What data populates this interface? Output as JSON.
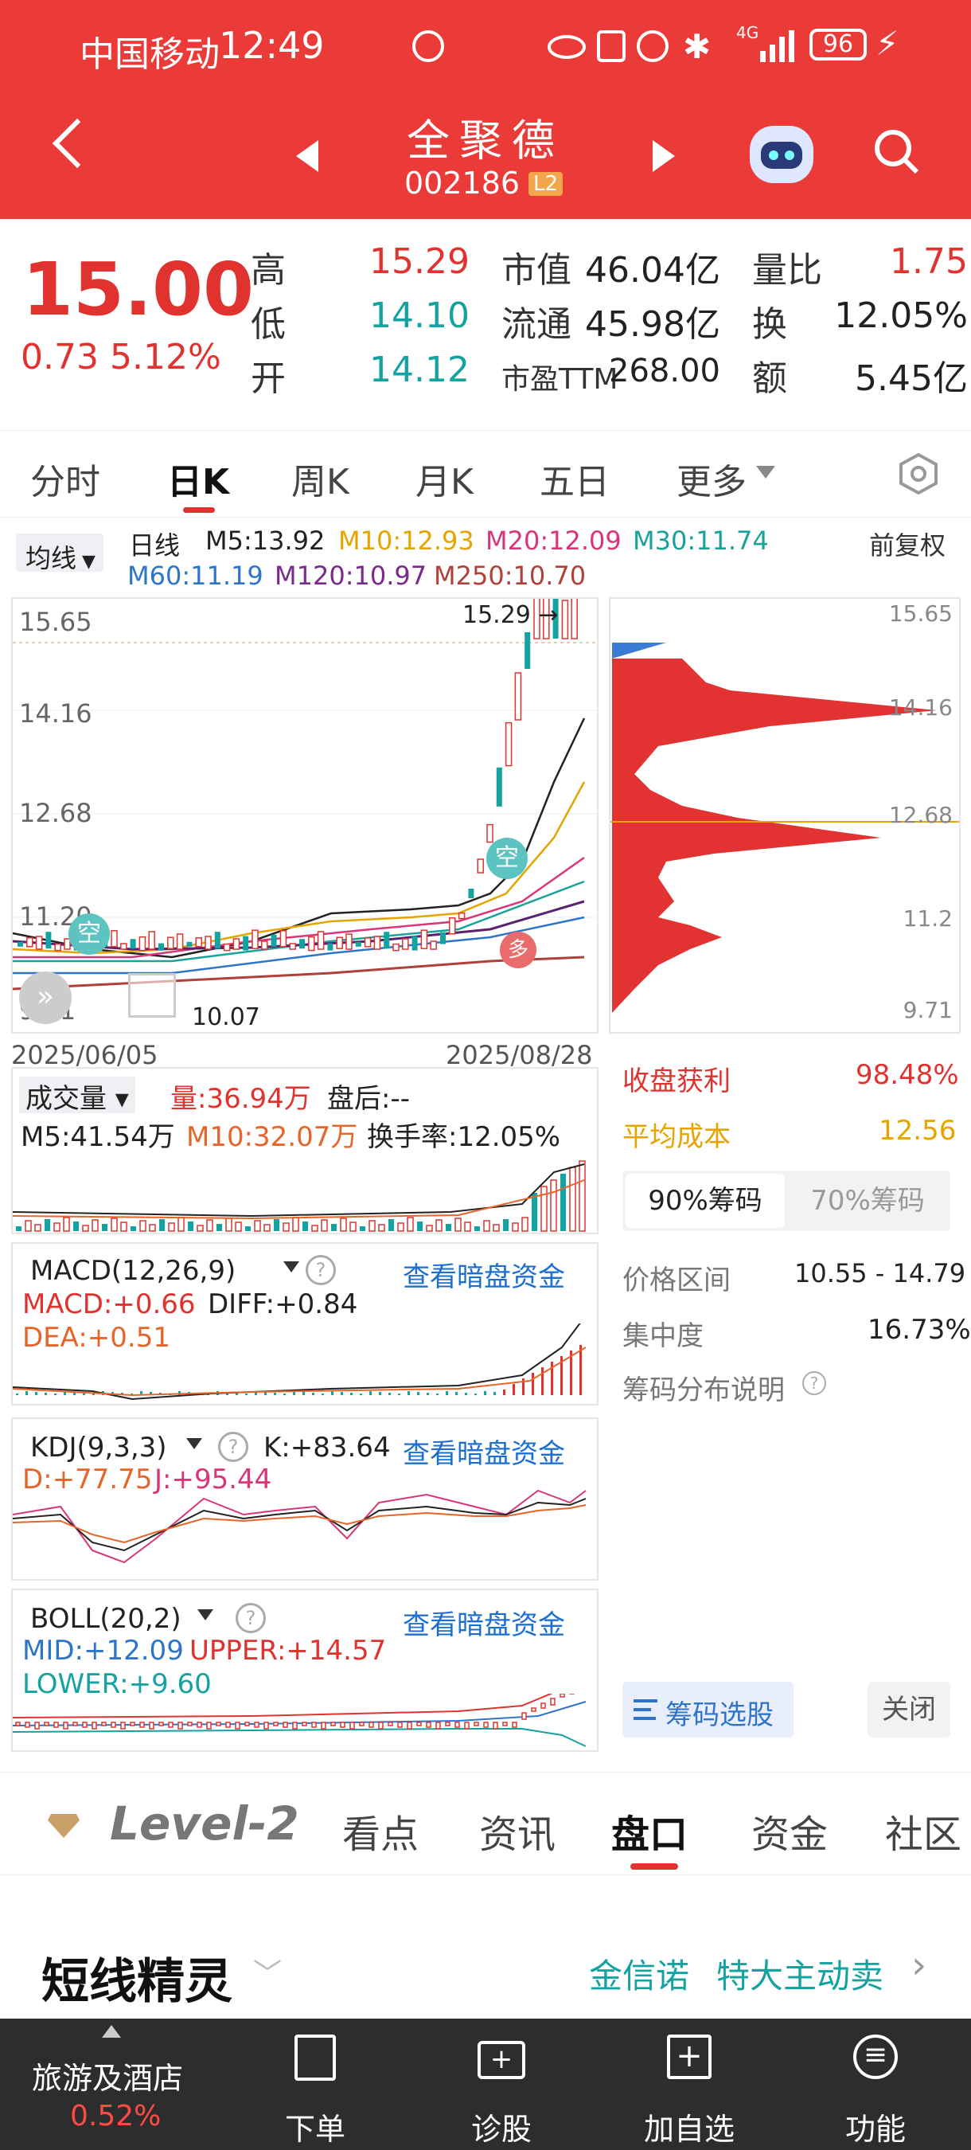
{
  "status": {
    "carrier": "中国移动",
    "time": "12:49",
    "network": "4G",
    "battery": "96"
  },
  "header": {
    "name": "全聚德",
    "code": "002186",
    "badge": "L2"
  },
  "quote": {
    "price": "15.00",
    "change": "0.73",
    "change_pct": "5.12%",
    "labels": {
      "high": "高",
      "low": "低",
      "open": "开",
      "mcap": "市值",
      "float": "流通",
      "pe": "市盈TTM",
      "vol_ratio": "量比",
      "turnover": "换",
      "amount": "额"
    },
    "high": "15.29",
    "low": "14.10",
    "open": "14.12",
    "mcap": "46.04亿",
    "float": "45.98亿",
    "pe": "268.00",
    "vol_ratio": "1.75",
    "turnover": "12.05%",
    "amount": "5.45亿"
  },
  "tabs": [
    "分时",
    "日K",
    "周K",
    "月K",
    "五日",
    "更多"
  ],
  "ma": {
    "selector": "均线",
    "period": "日线",
    "m5": "M5:13.92",
    "m10": "M10:12.93",
    "m20": "M20:12.09",
    "m30": "M30:11.74",
    "m60": "M60:11.19",
    "m120": "M120:10.97",
    "m250": "M250:10.70",
    "adjust": "前复权"
  },
  "kchart": {
    "y_ticks": [
      "15.65",
      "14.16",
      "12.68",
      "11.20",
      "9.71"
    ],
    "high_mark": "15.29",
    "low_mark": "10.07",
    "date_start": "2025/06/05",
    "date_end": "2025/08/28",
    "badge_kong": "空",
    "badge_duo": "多"
  },
  "chips_axis": [
    "15.65",
    "14.16",
    "12.68",
    "11.2",
    "9.71"
  ],
  "volume": {
    "label": "成交量",
    "vol": "量:36.94万",
    "after": "盘后:--",
    "m5": "M5:41.54万",
    "m10": "M10:32.07万",
    "turnover": "换手率:12.05%"
  },
  "macd": {
    "label": "MACD(12,26,9)",
    "link": "查看暗盘资金",
    "macd": "MACD:+0.66",
    "diff": "DIFF:+0.84",
    "dea": "DEA:+0.51"
  },
  "kdj": {
    "label": "KDJ(9,3,3)",
    "link": "查看暗盘资金",
    "k": "K:+83.64",
    "d": "D:+77.75",
    "j": "J:+95.44"
  },
  "boll": {
    "label": "BOLL(20,2)",
    "link": "查看暗盘资金",
    "mid": "MID:+12.09",
    "upper": "UPPER:+14.57",
    "lower": "LOWER:+9.60"
  },
  "chips": {
    "profit_label": "收盘获利",
    "profit": "98.48%",
    "avg_label": "平均成本",
    "avg": "12.56",
    "tab90": "90%筹码",
    "tab70": "70%筹码",
    "range_label": "价格区间",
    "range": "10.55 - 14.79",
    "conc_label": "集中度",
    "conc": "16.73%",
    "explain": "筹码分布说明",
    "select_btn": "筹码选股",
    "close_btn": "关闭"
  },
  "bottom_tabs": [
    "Level-2",
    "看点",
    "资讯",
    "盘口",
    "资金",
    "社区"
  ],
  "spirit": {
    "title": "短线精灵",
    "stock": "金信诺",
    "event": "特大主动卖"
  },
  "bottombar": {
    "sector": "旅游及酒店",
    "sector_pct": "0.52%",
    "items": [
      "下单",
      "诊股",
      "加自选",
      "功能"
    ]
  },
  "colors": {
    "brand_red": "#ea3b39",
    "up_red": "#e0332f",
    "down_teal": "#14a3a0",
    "link_blue": "#1c6fd1"
  }
}
